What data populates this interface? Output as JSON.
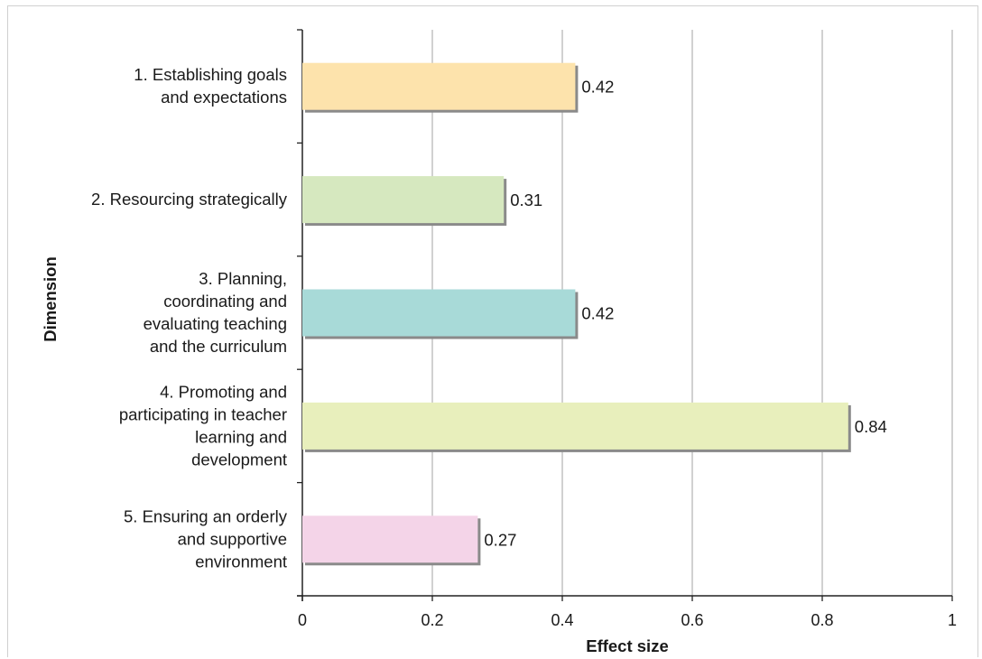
{
  "chart_data": {
    "type": "bar",
    "orientation": "horizontal",
    "categories": [
      [
        "1.  Establishing goals",
        "and expectations"
      ],
      [
        "2.  Resourcing strategically"
      ],
      [
        "3.  Planning,",
        "coordinating and",
        "evaluating teaching",
        "and the curriculum"
      ],
      [
        "4.  Promoting and",
        "participating in teacher",
        "learning and",
        "development"
      ],
      [
        "5.  Ensuring an orderly",
        "and supportive",
        "environment"
      ]
    ],
    "values": [
      0.42,
      0.31,
      0.42,
      0.84,
      0.27
    ],
    "value_labels": [
      "0.42",
      "0.31",
      "0.42",
      "0.84",
      "0.27"
    ],
    "bar_colors": [
      "#fde3ac",
      "#d6e8bf",
      "#a8dad8",
      "#e8efbc",
      "#f4d4e8"
    ],
    "xlabel": "Effect size",
    "ylabel": "Dimension",
    "xlim": [
      0,
      1
    ],
    "xticks": [
      "0",
      "0.2",
      "0.4",
      "0.6",
      "0.8",
      "1"
    ],
    "grid": "vertical",
    "legend": "none"
  }
}
